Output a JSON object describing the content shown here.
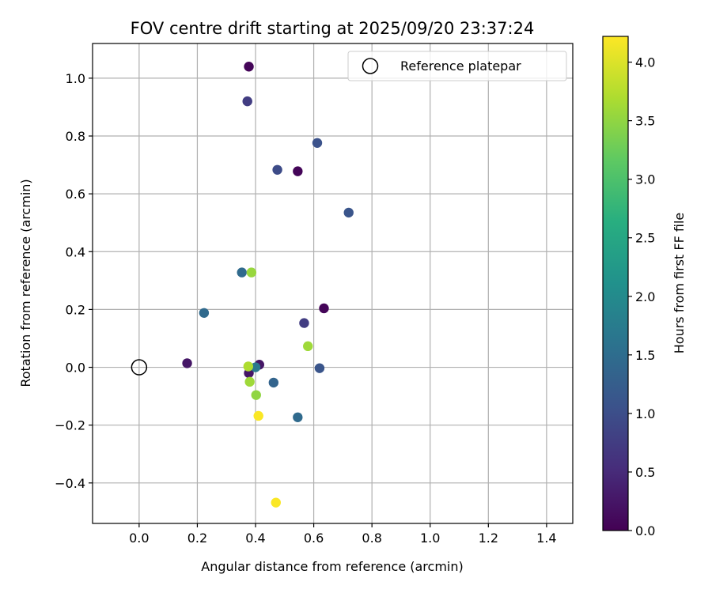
{
  "chart_data": {
    "type": "scatter",
    "title": "FOV centre drift starting at 2025/09/20 23:37:24",
    "xlabel": "Angular distance from reference (arcmin)",
    "ylabel": "Rotation from reference (arcmin)",
    "xlim": [
      -0.16,
      1.49
    ],
    "ylim": [
      -0.54,
      1.12
    ],
    "xticks": [
      0.0,
      0.2,
      0.4,
      0.6,
      0.8,
      1.0,
      1.2,
      1.4
    ],
    "yticks": [
      -0.4,
      -0.2,
      0.0,
      0.2,
      0.4,
      0.6,
      0.8,
      1.0
    ],
    "grid": true,
    "legend": {
      "placement": "top-right",
      "entries": [
        "Reference platepar"
      ]
    },
    "reference_point": {
      "name": "Reference platepar",
      "x": 0.0,
      "y": 0.0
    },
    "colorbar": {
      "label": "Hours from first FF file",
      "range": [
        0.0,
        4.22
      ],
      "ticks": [
        0.0,
        0.5,
        1.0,
        1.5,
        2.0,
        2.5,
        3.0,
        3.5,
        4.0
      ],
      "colormap": "viridis"
    },
    "points": [
      {
        "x": 0.377,
        "y": 1.04,
        "c": 0.05
      },
      {
        "x": 0.372,
        "y": 0.92,
        "c": 0.75
      },
      {
        "x": 0.612,
        "y": 0.776,
        "c": 1.05
      },
      {
        "x": 0.475,
        "y": 0.683,
        "c": 0.95
      },
      {
        "x": 0.545,
        "y": 0.678,
        "c": 0.05
      },
      {
        "x": 0.72,
        "y": 0.535,
        "c": 1.1
      },
      {
        "x": 0.353,
        "y": 0.328,
        "c": 1.45
      },
      {
        "x": 0.386,
        "y": 0.328,
        "c": 3.55
      },
      {
        "x": 0.635,
        "y": 0.204,
        "c": 0.05
      },
      {
        "x": 0.223,
        "y": 0.188,
        "c": 1.45
      },
      {
        "x": 0.567,
        "y": 0.153,
        "c": 0.75
      },
      {
        "x": 0.58,
        "y": 0.073,
        "c": 3.6
      },
      {
        "x": 0.165,
        "y": 0.014,
        "c": 0.25
      },
      {
        "x": 0.413,
        "y": 0.009,
        "c": 0.25
      },
      {
        "x": 0.62,
        "y": -0.003,
        "c": 1.1
      },
      {
        "x": 0.377,
        "y": -0.02,
        "c": 0.25
      },
      {
        "x": 0.4,
        "y": 0.0,
        "c": 1.7
      },
      {
        "x": 0.375,
        "y": 0.003,
        "c": 3.7
      },
      {
        "x": 0.38,
        "y": -0.05,
        "c": 3.6
      },
      {
        "x": 0.462,
        "y": -0.053,
        "c": 1.35
      },
      {
        "x": 0.402,
        "y": -0.096,
        "c": 3.5
      },
      {
        "x": 0.41,
        "y": -0.168,
        "c": 4.2
      },
      {
        "x": 0.545,
        "y": -0.173,
        "c": 1.45
      },
      {
        "x": 0.47,
        "y": -0.468,
        "c": 4.2
      }
    ]
  }
}
